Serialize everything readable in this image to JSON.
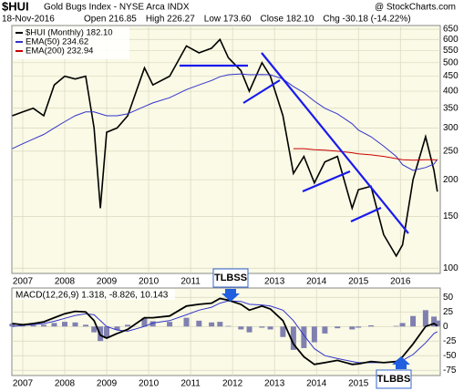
{
  "chart_data": [
    {
      "type": "line",
      "title": "$HUI",
      "subtitle": "Gold Bugs Index - NYSE Arca INDX",
      "watermark": "@ StockCharts.com",
      "date": "18-Nov-2016",
      "stats": [
        "Open 216.85",
        "High 226.27",
        "Low 173.60",
        "Close 182.10",
        "Chg -30.18 (-14.22%)"
      ],
      "log_scale": true,
      "grid": true,
      "xlim": [
        2006.74,
        2016.95
      ],
      "xticks": [
        2007,
        2008,
        2009,
        2010,
        2011,
        2012,
        2013,
        2014,
        2015,
        2016
      ],
      "ylim": [
        96,
        669
      ],
      "yticks": [
        650,
        600,
        550,
        500,
        450,
        400,
        350,
        300,
        250,
        200,
        150,
        100
      ],
      "x": [
        2006.75,
        2007.0,
        2007.25,
        2007.5,
        2007.75,
        2008.0,
        2008.25,
        2008.5,
        2008.7,
        2008.85,
        2009.0,
        2009.25,
        2009.5,
        2009.9,
        2010.1,
        2010.5,
        2010.9,
        2011.2,
        2011.5,
        2011.7,
        2011.9,
        2012.2,
        2012.4,
        2012.7,
        2012.9,
        2013.2,
        2013.45,
        2013.7,
        2013.95,
        2014.2,
        2014.5,
        2014.85,
        2015.0,
        2015.3,
        2015.6,
        2015.9,
        2016.05,
        2016.3,
        2016.6,
        2016.8,
        2016.88
      ],
      "series": [
        {
          "name": "$HUI (Monthly) 182.10",
          "color": "#000000",
          "values": [
            330,
            340,
            350,
            330,
            420,
            450,
            440,
            450,
            300,
            160,
            290,
            300,
            330,
            480,
            420,
            450,
            570,
            540,
            560,
            600,
            520,
            470,
            400,
            500,
            450,
            330,
            210,
            240,
            195,
            230,
            240,
            160,
            185,
            190,
            130,
            110,
            120,
            200,
            280,
            215,
            182.1
          ]
        },
        {
          "name": "EMA(50) 234.62",
          "color": "#3333cc",
          "values": [
            255,
            265,
            275,
            285,
            300,
            315,
            330,
            340,
            340,
            335,
            330,
            330,
            335,
            355,
            365,
            380,
            405,
            420,
            435,
            448,
            455,
            458,
            455,
            456,
            455,
            440,
            415,
            395,
            370,
            350,
            335,
            310,
            295,
            280,
            260,
            240,
            225,
            215,
            220,
            226,
            234.62
          ]
        },
        {
          "name": "EMA(200) 232.94",
          "color": "#cc0000",
          "values": [
            null,
            null,
            null,
            null,
            null,
            null,
            null,
            null,
            null,
            null,
            null,
            null,
            null,
            null,
            null,
            null,
            null,
            null,
            null,
            null,
            null,
            null,
            null,
            null,
            null,
            null,
            255,
            255,
            253,
            252,
            250,
            247,
            245,
            243,
            240,
            236,
            234,
            233,
            234,
            234,
            232.94
          ]
        }
      ]
    },
    {
      "type": "macd",
      "title": "MACD(12,26,9) 1.318, -8.826, 10.143",
      "grid": true,
      "annotations": [
        "TLBSS",
        "TLBBS"
      ],
      "xlim": [
        2006.74,
        2016.95
      ],
      "xticks": [
        2007,
        2008,
        2009,
        2010,
        2011,
        2012,
        2013,
        2014,
        2015,
        2016
      ],
      "ylim": [
        -84,
        66
      ],
      "yticks": [
        50,
        25,
        0,
        -25,
        -50,
        -75
      ],
      "x": [
        2006.75,
        2007.0,
        2007.25,
        2007.5,
        2007.75,
        2008.0,
        2008.25,
        2008.5,
        2008.7,
        2008.85,
        2009.0,
        2009.25,
        2009.5,
        2009.9,
        2010.1,
        2010.5,
        2010.9,
        2011.2,
        2011.5,
        2011.7,
        2011.9,
        2012.2,
        2012.4,
        2012.7,
        2012.9,
        2013.2,
        2013.45,
        2013.7,
        2013.95,
        2014.2,
        2014.5,
        2014.85,
        2015.0,
        2015.3,
        2015.6,
        2015.9,
        2016.05,
        2016.3,
        2016.6,
        2016.8,
        2016.88
      ],
      "macd": {
        "color": "#000000",
        "values": [
          5,
          3,
          5,
          8,
          15,
          22,
          26,
          25,
          10,
          -15,
          -20,
          -12,
          -5,
          15,
          15,
          18,
          35,
          38,
          40,
          48,
          45,
          38,
          28,
          35,
          30,
          10,
          -30,
          -52,
          -65,
          -62,
          -58,
          -65,
          -64,
          -60,
          -62,
          -60,
          -52,
          -30,
          0,
          5,
          1.318
        ]
      },
      "signal": {
        "color": "#3333cc",
        "values": [
          0,
          2,
          3,
          5,
          9,
          14,
          19,
          22,
          20,
          10,
          0,
          -6,
          -8,
          0,
          6,
          10,
          20,
          28,
          33,
          40,
          44,
          43,
          38,
          37,
          35,
          28,
          10,
          -15,
          -38,
          -50,
          -55,
          -60,
          -62,
          -62,
          -62,
          -61,
          -58,
          -48,
          -28,
          -12,
          -8.826
        ]
      },
      "histogram": {
        "color": "#8080b0",
        "values": [
          5,
          1,
          2,
          3,
          6,
          8,
          7,
          3,
          -10,
          -25,
          -20,
          -6,
          3,
          15,
          9,
          8,
          15,
          10,
          7,
          8,
          1,
          -5,
          -10,
          -2,
          -5,
          -18,
          -40,
          -37,
          -27,
          -12,
          -3,
          -5,
          -2,
          2,
          0,
          1,
          6,
          18,
          28,
          17,
          10.143
        ]
      }
    }
  ]
}
